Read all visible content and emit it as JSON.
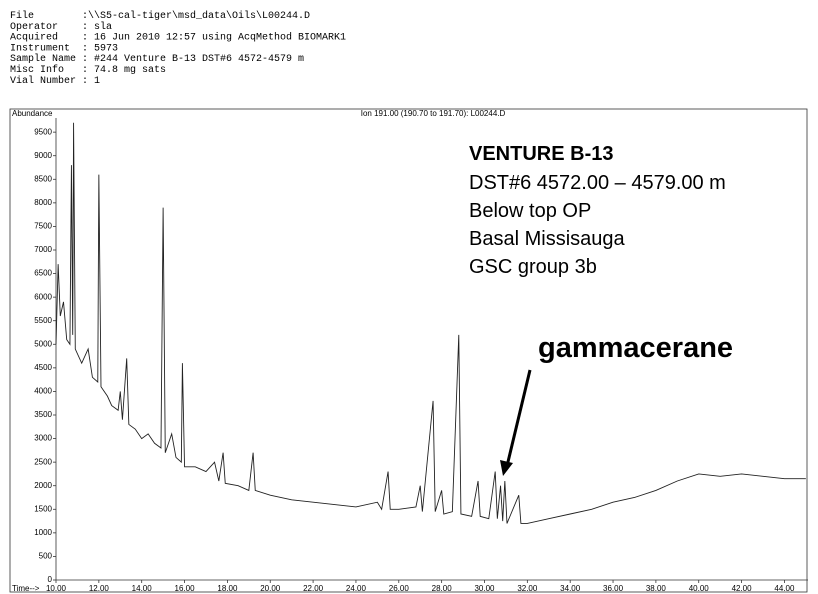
{
  "header": [
    {
      "label": "File",
      "value": ":\\\\S5-cal-tiger\\msd_data\\Oils\\L00244.D"
    },
    {
      "label": "Operator",
      "value": ": sla"
    },
    {
      "label": "Acquired",
      "value": ": 16 Jun 2010  12:57     using AcqMethod BIOMARK1"
    },
    {
      "label": "Instrument",
      "value": ":    5973"
    },
    {
      "label": "Sample Name",
      "value": ": #244  Venture B-13  DST#6  4572-4579 m"
    },
    {
      "label": "Misc Info",
      "value": ": 74.8  mg sats"
    },
    {
      "label": "Vial Number",
      "value": ": 1"
    }
  ],
  "chart_data": {
    "type": "line",
    "title": "Ion 191.00 (190.70 to 191.70): L00244.D",
    "y_label": "Abundance",
    "x_label": "Time-->",
    "color": "#222222",
    "grid": false,
    "xlim": [
      10,
      45.1
    ],
    "ylim": [
      0,
      9800
    ],
    "xticks": [
      {
        "value": 10,
        "label": "10.00"
      },
      {
        "value": 12,
        "label": "12.00"
      },
      {
        "value": 14,
        "label": "14.00"
      },
      {
        "value": 16,
        "label": "16.00"
      },
      {
        "value": 18,
        "label": "18.00"
      },
      {
        "value": 20,
        "label": "20.00"
      },
      {
        "value": 22,
        "label": "22.00"
      },
      {
        "value": 24,
        "label": "24.00"
      },
      {
        "value": 26,
        "label": "26.00"
      },
      {
        "value": 28,
        "label": "28.00"
      },
      {
        "value": 30,
        "label": "30.00"
      },
      {
        "value": 32,
        "label": "32.00"
      },
      {
        "value": 34,
        "label": "34.00"
      },
      {
        "value": 36,
        "label": "36.00"
      },
      {
        "value": 38,
        "label": "38.00"
      },
      {
        "value": 40,
        "label": "40.00"
      },
      {
        "value": 42,
        "label": "42.00"
      },
      {
        "value": 44,
        "label": "44.00"
      }
    ],
    "yticks": [
      0,
      500,
      1000,
      1500,
      2000,
      2500,
      3000,
      3500,
      4000,
      4500,
      5000,
      5500,
      6000,
      6500,
      7000,
      7500,
      8000,
      8500,
      9000,
      9500
    ],
    "annotations": [
      "VENTURE B-13",
      "DST#6   4572.00 – 4579.00 m",
      "Below top OP",
      "Basal Missisauga",
      "GSC group 3b",
      "gammacerane"
    ],
    "x": [
      10.0,
      10.1,
      10.2,
      10.35,
      10.5,
      10.65,
      10.72,
      10.78,
      10.82,
      10.9,
      11.2,
      11.5,
      11.7,
      11.95,
      12.0,
      12.1,
      12.4,
      12.6,
      12.9,
      13.0,
      13.1,
      13.3,
      13.4,
      13.7,
      14.0,
      14.3,
      14.6,
      14.9,
      15.0,
      15.1,
      15.4,
      15.6,
      15.85,
      15.9,
      16.0,
      16.5,
      17.0,
      17.4,
      17.6,
      17.8,
      17.9,
      18.5,
      19.0,
      19.2,
      19.3,
      20.0,
      21.0,
      22.0,
      23.0,
      24.0,
      25.0,
      25.2,
      25.5,
      25.6,
      26.0,
      26.8,
      27.0,
      27.1,
      27.6,
      27.7,
      28.0,
      28.1,
      28.5,
      28.8,
      28.9,
      29.4,
      29.7,
      29.8,
      30.2,
      30.5,
      30.6,
      30.75,
      30.85,
      30.95,
      31.05,
      31.6,
      31.7,
      32.0,
      33.0,
      34.0,
      35.0,
      36.0,
      37.0,
      38.0,
      39.0,
      40.0,
      41.0,
      42.0,
      43.0,
      44.0,
      45.0
    ],
    "values": [
      5000,
      6700,
      5600,
      5900,
      5100,
      5000,
      8800,
      5200,
      9700,
      4900,
      4600,
      4900,
      4300,
      4200,
      8600,
      4100,
      3900,
      3700,
      3600,
      4000,
      3400,
      4700,
      3300,
      3200,
      3000,
      3100,
      2900,
      2800,
      7900,
      2700,
      3100,
      2600,
      2500,
      4600,
      2400,
      2400,
      2300,
      2500,
      2100,
      2700,
      2050,
      2000,
      1900,
      2700,
      1900,
      1800,
      1700,
      1650,
      1600,
      1550,
      1650,
      1500,
      2300,
      1500,
      1500,
      1550,
      2000,
      1450,
      3800,
      1450,
      1900,
      1400,
      1450,
      5200,
      1400,
      1350,
      2100,
      1350,
      1300,
      2300,
      1300,
      2000,
      1250,
      2100,
      1200,
      1800,
      1200,
      1200,
      1300,
      1400,
      1500,
      1650,
      1750,
      1900,
      2100,
      2250,
      2200,
      2250,
      2200,
      2150,
      2150
    ]
  }
}
